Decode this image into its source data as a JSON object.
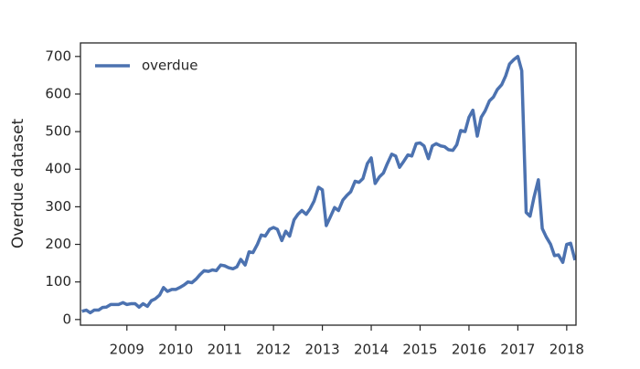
{
  "chart_data": {
    "type": "line",
    "ylabel": "Overdue dataset",
    "legend": "upper left",
    "grid": false,
    "xlim": [
      2008.05,
      2018.19
    ],
    "ylim": [
      -15,
      736
    ],
    "xticks": [
      2009,
      2010,
      2011,
      2012,
      2013,
      2014,
      2015,
      2016,
      2017,
      2018
    ],
    "yticks": [
      0,
      100,
      200,
      300,
      400,
      500,
      600,
      700
    ],
    "series": [
      {
        "name": "overdue",
        "color": "#4c72b0",
        "x": [
          2008.08,
          2008.17,
          2008.25,
          2008.33,
          2008.42,
          2008.5,
          2008.58,
          2008.67,
          2008.75,
          2008.83,
          2008.92,
          2009.0,
          2009.08,
          2009.17,
          2009.25,
          2009.33,
          2009.42,
          2009.5,
          2009.58,
          2009.67,
          2009.75,
          2009.83,
          2009.92,
          2010.0,
          2010.08,
          2010.17,
          2010.25,
          2010.33,
          2010.42,
          2010.5,
          2010.58,
          2010.67,
          2010.75,
          2010.83,
          2010.92,
          2011.0,
          2011.08,
          2011.17,
          2011.25,
          2011.33,
          2011.42,
          2011.5,
          2011.58,
          2011.67,
          2011.75,
          2011.83,
          2011.92,
          2012.0,
          2012.08,
          2012.17,
          2012.25,
          2012.33,
          2012.42,
          2012.5,
          2012.58,
          2012.67,
          2012.75,
          2012.83,
          2012.92,
          2013.0,
          2013.08,
          2013.17,
          2013.25,
          2013.33,
          2013.42,
          2013.5,
          2013.58,
          2013.67,
          2013.75,
          2013.83,
          2013.92,
          2014.0,
          2014.08,
          2014.17,
          2014.25,
          2014.33,
          2014.42,
          2014.5,
          2014.58,
          2014.67,
          2014.75,
          2014.83,
          2014.92,
          2015.0,
          2015.08,
          2015.17,
          2015.25,
          2015.33,
          2015.42,
          2015.5,
          2015.58,
          2015.67,
          2015.75,
          2015.83,
          2015.92,
          2016.0,
          2016.08,
          2016.17,
          2016.25,
          2016.33,
          2016.42,
          2016.5,
          2016.58,
          2016.67,
          2016.75,
          2016.83,
          2016.92,
          2017.0,
          2017.08,
          2017.17,
          2017.25,
          2017.33,
          2017.42,
          2017.5,
          2017.58,
          2017.67,
          2017.75,
          2017.83,
          2017.92,
          2018.0,
          2018.08,
          2018.17
        ],
        "values": [
          22,
          25,
          18,
          25,
          25,
          32,
          33,
          40,
          40,
          40,
          45,
          40,
          42,
          42,
          33,
          42,
          35,
          50,
          55,
          65,
          85,
          75,
          80,
          80,
          85,
          92,
          100,
          98,
          108,
          120,
          130,
          128,
          132,
          130,
          145,
          143,
          138,
          135,
          140,
          160,
          145,
          180,
          178,
          200,
          225,
          222,
          240,
          245,
          240,
          210,
          235,
          222,
          265,
          280,
          290,
          280,
          295,
          315,
          352,
          345,
          250,
          275,
          298,
          290,
          318,
          330,
          340,
          368,
          365,
          375,
          415,
          430,
          362,
          380,
          390,
          415,
          440,
          435,
          405,
          422,
          438,
          435,
          468,
          470,
          462,
          428,
          462,
          468,
          462,
          460,
          452,
          450,
          465,
          503,
          500,
          538,
          557,
          488,
          538,
          555,
          582,
          592,
          612,
          625,
          648,
          680,
          692,
          700,
          662,
          285,
          275,
          325,
          372,
          242,
          220,
          200,
          170,
          172,
          152,
          200,
          203,
          158
        ]
      }
    ]
  }
}
